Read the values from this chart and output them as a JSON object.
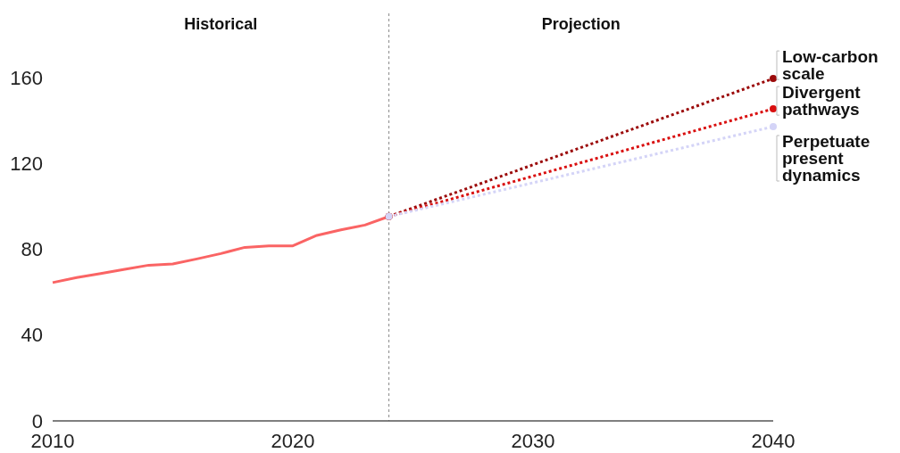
{
  "chart_data": {
    "type": "line",
    "xlim": [
      2010,
      2040
    ],
    "xticks": [
      2010,
      2020,
      2030,
      2040
    ],
    "ylim": [
      0,
      190
    ],
    "yticks": [
      0,
      40,
      80,
      120,
      160
    ],
    "grid": false,
    "legend": "right",
    "annotations": [
      "Historical",
      "Projection"
    ],
    "ref_lines": [
      {
        "axis": "x",
        "value": 2024,
        "color": "#888888",
        "line_style": "dotted"
      }
    ],
    "series": [
      {
        "color": "#fa6464",
        "line_style": "solid",
        "marker": "none",
        "x": [
          2010,
          2011,
          2012,
          2013,
          2014,
          2015,
          2016,
          2017,
          2018,
          2019,
          2020,
          2021,
          2022,
          2023,
          2024
        ],
        "values": [
          64.5,
          66.8,
          68.7,
          70.7,
          72.6,
          73.2,
          75.5,
          78,
          80.9,
          81.6,
          81.6,
          86.5,
          89.1,
          91.3,
          95.3
        ]
      },
      {
        "name": "Low-carbon scale",
        "color": "#9b0a0a",
        "line_style": "dotted",
        "marker": "circle",
        "x": [
          2024,
          2040
        ],
        "values": [
          95.3,
          159.6
        ]
      },
      {
        "name": "Divergent pathways",
        "color": "#d90f0f",
        "line_style": "dotted",
        "marker": "circle",
        "x": [
          2024,
          2040
        ],
        "values": [
          95.3,
          145.5
        ]
      },
      {
        "name": "Perpetuate present dynamics",
        "color": "#d4d4f7",
        "line_style": "dotted",
        "marker": "circle",
        "x": [
          2024,
          2040
        ],
        "values": [
          95.3,
          137.2
        ]
      }
    ]
  }
}
